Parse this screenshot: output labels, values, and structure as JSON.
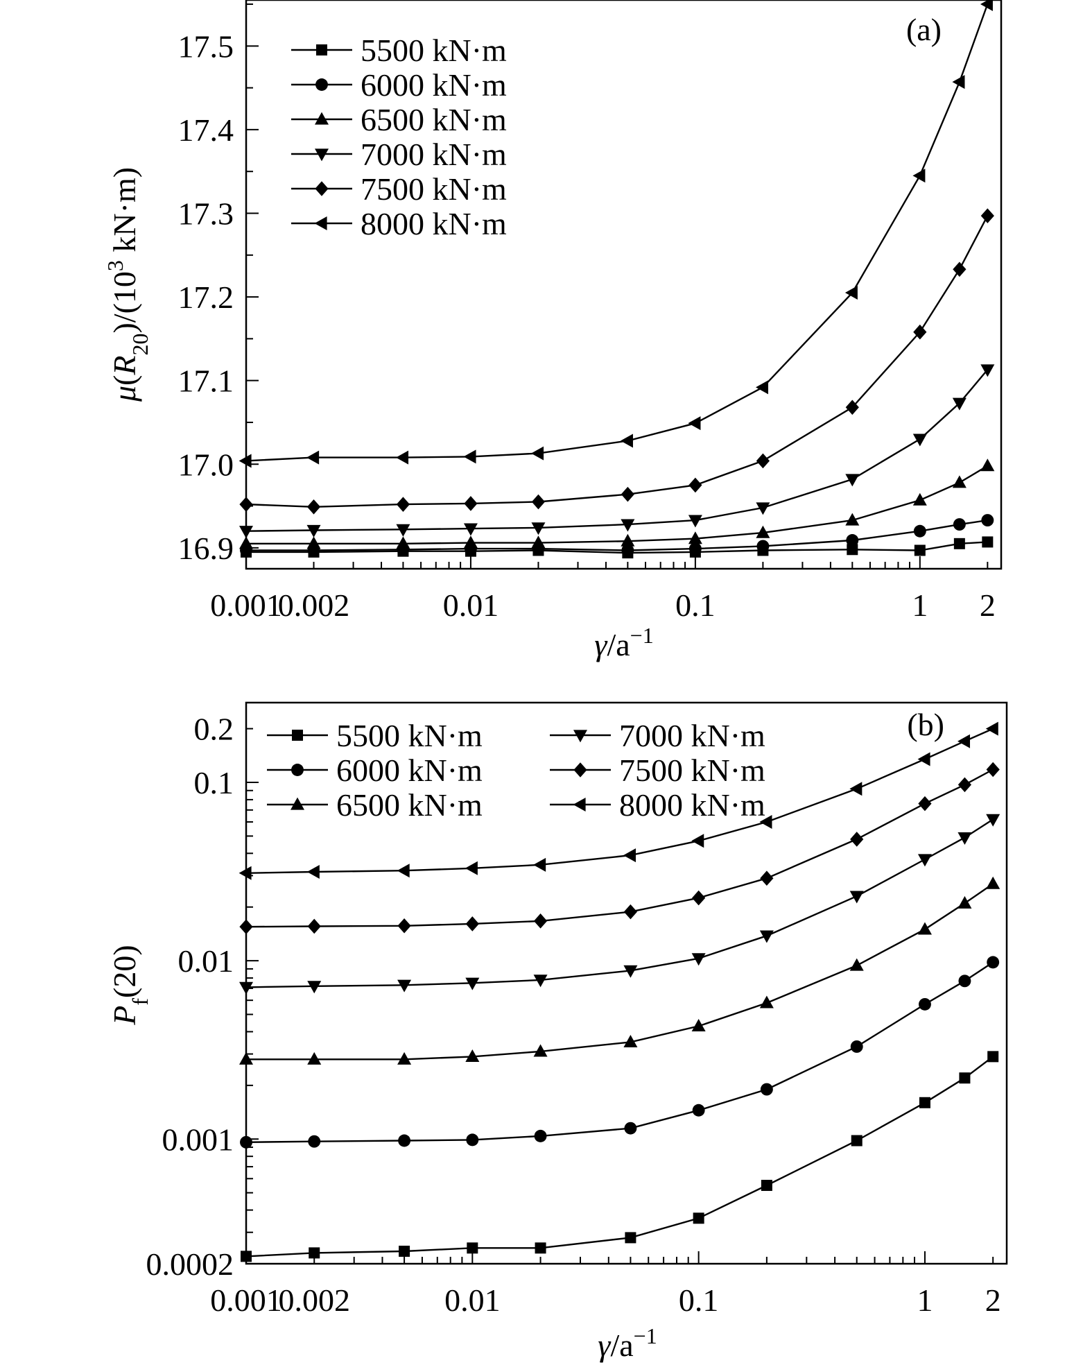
{
  "chart_data": [
    {
      "type": "line",
      "panel_label": "(a)",
      "xlabel": "γ/a",
      "xlabel_sup": "−1",
      "ylabel": {
        "pre": "μ(R",
        "sub": "20",
        "mid": ")/(10",
        "sup": "3",
        "post": " kN·m)"
      },
      "x_scale": "log",
      "xlim": [
        0.001,
        2.3
      ],
      "ylim": [
        16.875,
        17.555
      ],
      "x_ticks": [
        0.001,
        0.002,
        0.01,
        0.1,
        1,
        2
      ],
      "x_tick_labels": [
        "0.001",
        "0.002",
        "0.01",
        "0.1",
        "1",
        "2"
      ],
      "y_ticks": [
        16.9,
        17.0,
        17.1,
        17.2,
        17.3,
        17.4,
        17.5
      ],
      "y_tick_labels": [
        "16.9",
        "17.0",
        "17.1",
        "17.2",
        "17.3",
        "17.4",
        "17.5"
      ],
      "legend_position": "top-left",
      "x": [
        0.001,
        0.002,
        0.005,
        0.01,
        0.02,
        0.05,
        0.1,
        0.2,
        0.5,
        1,
        1.5,
        2
      ],
      "series": [
        {
          "name": "5500 kN·m",
          "marker": "square",
          "values": [
            16.895,
            16.895,
            16.896,
            16.896,
            16.897,
            16.894,
            16.895,
            16.897,
            16.898,
            16.897,
            16.905,
            16.907
          ]
        },
        {
          "name": "6000 kN·m",
          "marker": "circle",
          "values": [
            16.897,
            16.897,
            16.898,
            16.899,
            16.899,
            16.897,
            16.899,
            16.902,
            16.909,
            16.92,
            16.928,
            16.933
          ]
        },
        {
          "name": "6500 kN·m",
          "marker": "triangle-up",
          "values": [
            16.905,
            16.905,
            16.905,
            16.906,
            16.906,
            16.908,
            16.911,
            16.918,
            16.933,
            16.957,
            16.978,
            16.998
          ]
        },
        {
          "name": "7000 kN·m",
          "marker": "triangle-down",
          "values": [
            16.92,
            16.921,
            16.922,
            16.923,
            16.924,
            16.928,
            16.933,
            16.948,
            16.982,
            17.03,
            17.073,
            17.113
          ]
        },
        {
          "name": "7500 kN·m",
          "marker": "diamond",
          "values": [
            16.952,
            16.949,
            16.952,
            16.953,
            16.955,
            16.964,
            16.975,
            17.004,
            17.068,
            17.158,
            17.233,
            17.297
          ]
        },
        {
          "name": "8000 kN·m",
          "marker": "triangle-left",
          "values": [
            17.004,
            17.008,
            17.008,
            17.009,
            17.013,
            17.028,
            17.049,
            17.092,
            17.205,
            17.345,
            17.457,
            17.55
          ]
        }
      ]
    },
    {
      "type": "line",
      "panel_label": "(b)",
      "xlabel": "γ/a",
      "xlabel_sup": "−1",
      "ylabel": {
        "pre": "P",
        "sub": "f",
        "post": "(20)"
      },
      "x_scale": "log",
      "y_scale": "log",
      "xlim": [
        0.001,
        2.3
      ],
      "ylim": [
        0.0002,
        0.28
      ],
      "x_ticks": [
        0.001,
        0.002,
        0.01,
        0.1,
        1,
        2
      ],
      "x_tick_labels": [
        "0.001",
        "0.002",
        "0.01",
        "0.1",
        "1",
        "2"
      ],
      "y_ticks": [
        0.0002,
        0.001,
        0.01,
        0.1,
        0.2
      ],
      "y_tick_labels": [
        "0.0002",
        "0.001",
        "0.01",
        "0.1",
        "0.2"
      ],
      "legend_position": "top-left",
      "x": [
        0.001,
        0.002,
        0.005,
        0.01,
        0.02,
        0.05,
        0.1,
        0.2,
        0.5,
        1,
        1.5,
        2
      ],
      "series": [
        {
          "name": "5500 kN·m",
          "marker": "square",
          "values": [
            0.00022,
            0.00023,
            0.000235,
            0.000245,
            0.000245,
            0.00028,
            0.00036,
            0.00055,
            0.00098,
            0.0016,
            0.0022,
            0.0029
          ]
        },
        {
          "name": "6000 kN·m",
          "marker": "circle",
          "values": [
            0.00096,
            0.00097,
            0.00098,
            0.00099,
            0.00104,
            0.00115,
            0.00145,
            0.0019,
            0.0033,
            0.0057,
            0.0077,
            0.0098
          ]
        },
        {
          "name": "6500 kN·m",
          "marker": "triangle-up",
          "values": [
            0.0028,
            0.0028,
            0.0028,
            0.0029,
            0.0031,
            0.0035,
            0.0043,
            0.0058,
            0.0094,
            0.015,
            0.021,
            0.027
          ]
        },
        {
          "name": "7000 kN·m",
          "marker": "triangle-down",
          "values": [
            0.0071,
            0.0072,
            0.0073,
            0.0075,
            0.0078,
            0.0088,
            0.0103,
            0.0138,
            0.023,
            0.037,
            0.049,
            0.062
          ]
        },
        {
          "name": "7500 kN·m",
          "marker": "diamond",
          "values": [
            0.0155,
            0.0156,
            0.0157,
            0.0161,
            0.0167,
            0.0188,
            0.0225,
            0.029,
            0.048,
            0.076,
            0.097,
            0.118
          ]
        },
        {
          "name": "8000 kN·m",
          "marker": "triangle-left",
          "values": [
            0.031,
            0.0315,
            0.032,
            0.033,
            0.0345,
            0.039,
            0.047,
            0.06,
            0.092,
            0.135,
            0.17,
            0.2
          ]
        }
      ]
    }
  ]
}
